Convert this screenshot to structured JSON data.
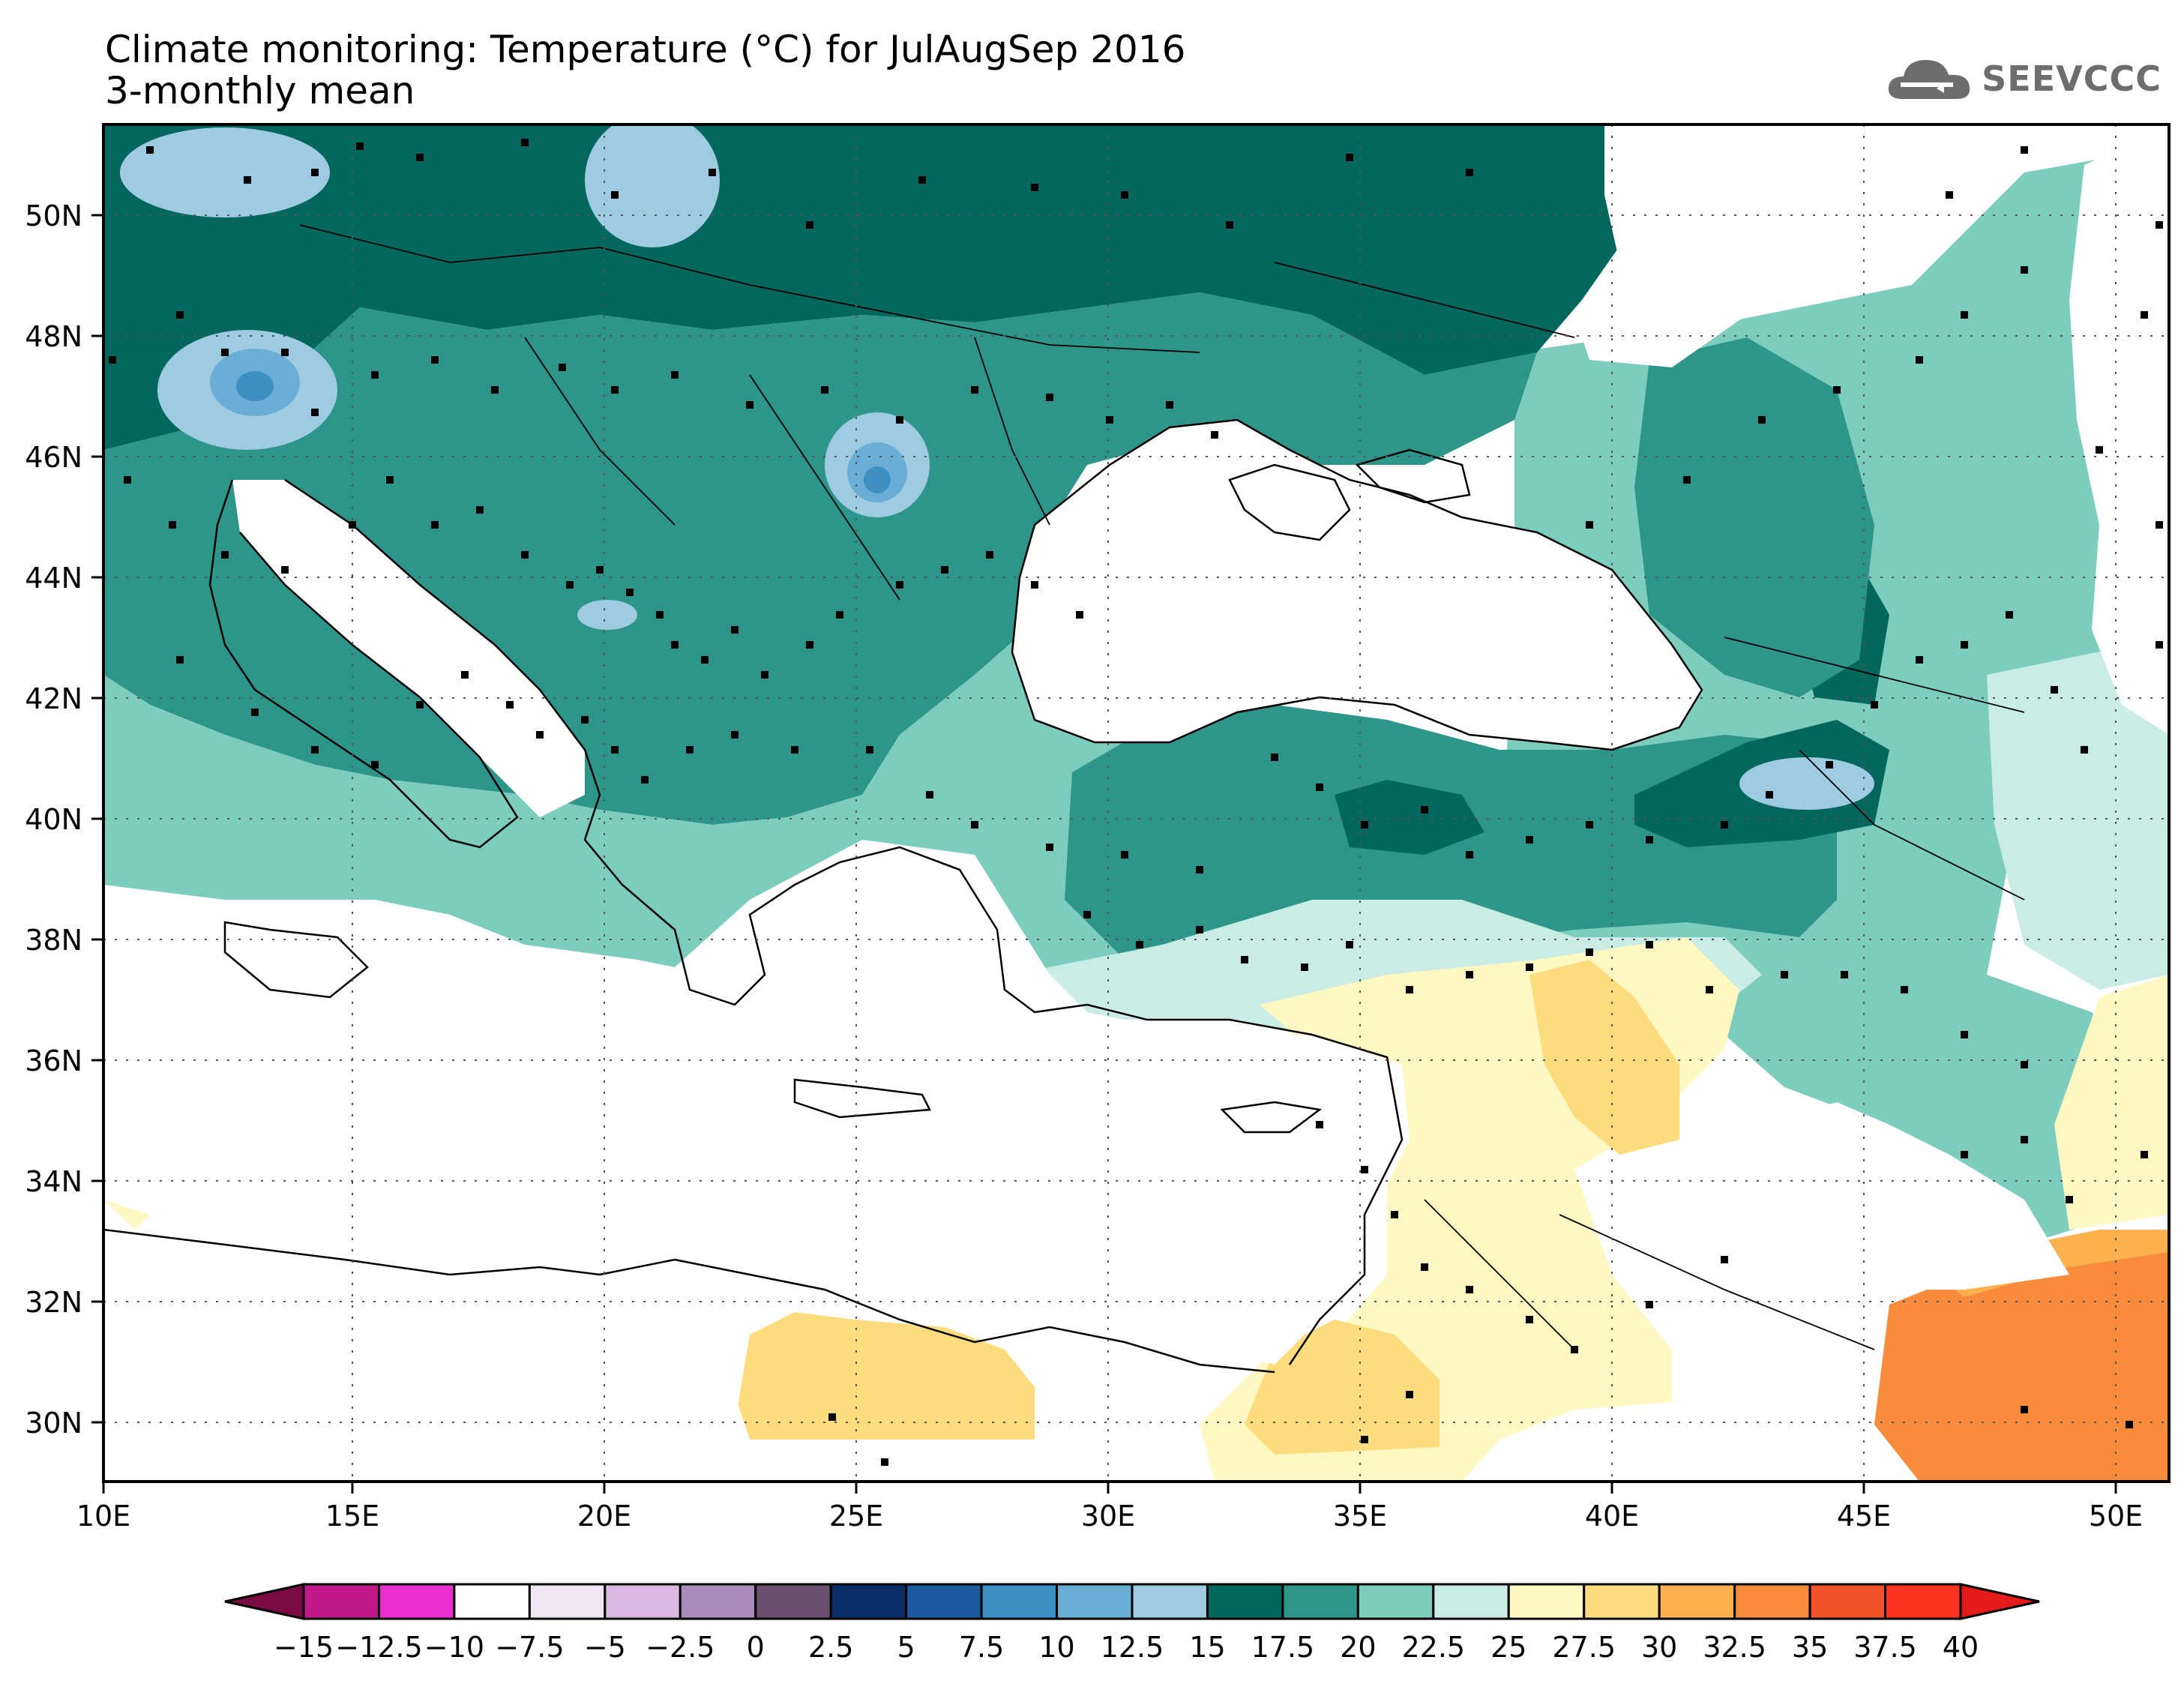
{
  "title": {
    "line1": "Climate monitoring: Temperature (°C) for JulAugSep 2016",
    "line2": "3-monthly mean"
  },
  "logo": {
    "text": "SEEVCCC",
    "icon": "cloud-icon"
  },
  "axes": {
    "lon_labels": [
      "10E",
      "15E",
      "20E",
      "25E",
      "30E",
      "35E",
      "40E",
      "45E",
      "50E"
    ],
    "lat_labels": [
      "50N",
      "48N",
      "46N",
      "44N",
      "42N",
      "40N",
      "38N",
      "36N",
      "34N",
      "32N",
      "30N"
    ],
    "lon_range": [
      10,
      51
    ],
    "lat_range": [
      29,
      51.5
    ],
    "grid": "dotted"
  },
  "colorbar": {
    "labels": [
      "-15",
      "-12.5",
      "-10",
      "-7.5",
      "-5",
      "-2.5",
      "0",
      "2.5",
      "5",
      "7.5",
      "10",
      "12.5",
      "15",
      "17.5",
      "20",
      "22.5",
      "25",
      "27.5",
      "30",
      "32.5",
      "35",
      "37.5",
      "40"
    ],
    "colors": [
      "#9e0e5e",
      "#c2198a",
      "#ea2ecf",
      "#ffffff",
      "#f1e6f4",
      "#dbb8e1",
      "#ac8cbd",
      "#6c506f",
      "#0c2e68",
      "#1b5a9e",
      "#3e8fc4",
      "#6aaed6",
      "#9ecbe1",
      "#03675e",
      "#2d958a",
      "#7dcdbf",
      "#c9ece4",
      "#fff8c3",
      "#fedb7d",
      "#fdb14e",
      "#f88b3c",
      "#f0522c",
      "#fe331f"
    ],
    "under_color": "#7a0c44",
    "over_color": "#e41a1c"
  }
}
